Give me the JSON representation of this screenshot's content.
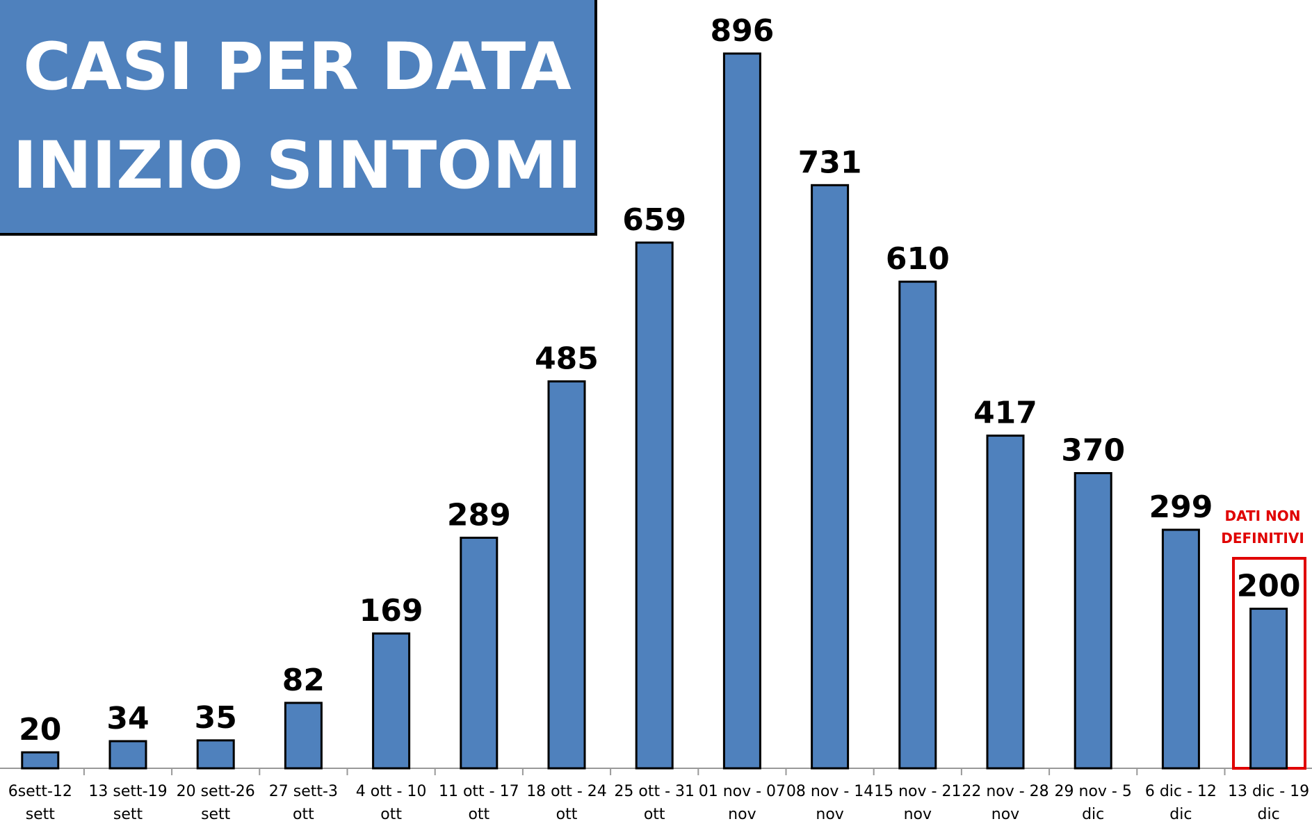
{
  "chart_data": {
    "type": "bar",
    "title": "CASI PER DATA\nINIZIO SINTOMI",
    "categories": [
      "6sett-12\nsett",
      "13 sett-19\nsett",
      "20 sett-26\nsett",
      "27 sett-3\nott",
      "4 ott - 10\nott",
      "11 ott - 17\nott",
      "18 ott - 24\nott",
      "25 ott - 31\nott",
      "01 nov - 07\nnov",
      "08 nov - 14\nnov",
      "15 nov - 21\nnov",
      "22 nov - 28\nnov",
      "29 nov - 5\ndic",
      "6 dic - 12\ndic",
      "13 dic - 19\ndic"
    ],
    "values": [
      20,
      34,
      35,
      82,
      169,
      289,
      485,
      659,
      896,
      731,
      610,
      417,
      370,
      299,
      200
    ],
    "color": "#4f81bd",
    "annotation": "DATI NON\nDEFINITIVI"
  }
}
